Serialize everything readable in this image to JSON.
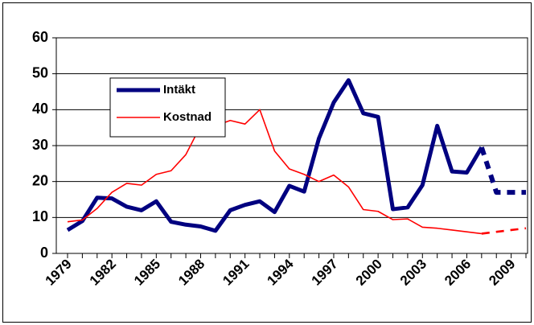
{
  "chart_data": {
    "type": "line",
    "categories": [
      "1979",
      null,
      null,
      "1982",
      null,
      null,
      "1985",
      null,
      null,
      "1988",
      null,
      null,
      "1991",
      null,
      null,
      "1994",
      null,
      null,
      "1997",
      null,
      null,
      "2000",
      null,
      null,
      "2003",
      null,
      null,
      "2006",
      null,
      null,
      "2009",
      null
    ],
    "series": [
      {
        "name": "Intäkt",
        "color": "#000080",
        "dash_from_index": 28,
        "values": [
          6.5,
          9,
          15.5,
          15.3,
          13,
          12,
          14.5,
          8.8,
          8,
          7.5,
          6.3,
          12,
          13.5,
          14.5,
          11.5,
          18.8,
          17.2,
          32,
          42,
          48.2,
          39,
          38,
          12.3,
          12.8,
          19,
          35.5,
          22.8,
          22.5,
          29.5,
          17,
          17,
          17
        ]
      },
      {
        "name": "Kostnad",
        "color": "#ff0000",
        "dash_from_index": 28,
        "values": [
          8.8,
          9.3,
          12.5,
          17,
          19.5,
          19,
          22,
          23,
          27.5,
          35.5,
          35.5,
          37,
          36,
          40,
          28.5,
          23.5,
          22,
          20,
          21.8,
          18.5,
          12.2,
          11.7,
          9.4,
          9.6,
          7.3,
          7,
          6.5,
          6,
          5.5,
          6,
          6.5,
          7
        ]
      }
    ],
    "ylim": [
      0,
      60
    ],
    "yticks": [
      0,
      10,
      20,
      30,
      40,
      50,
      60
    ],
    "grid": true,
    "legend": "upper left"
  }
}
